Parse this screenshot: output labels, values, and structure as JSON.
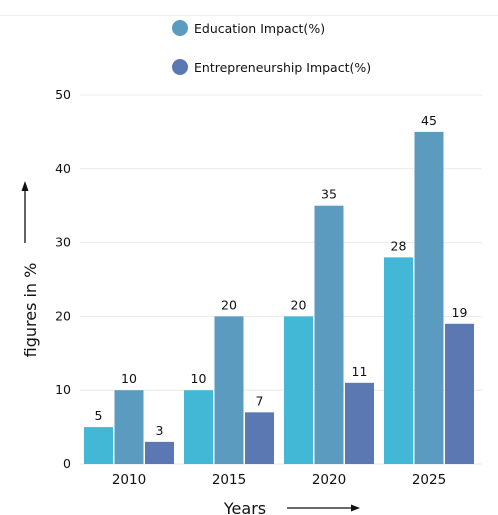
{
  "colors": {
    "series1": "#43b8d6",
    "series2": "#5b9bbf",
    "series3": "#5b78b2",
    "grid": "#e8e8e8"
  },
  "legend": [
    {
      "label": "Education Impact(%)",
      "color": "#5b9bbf"
    },
    {
      "label": "Entrepreneurship Impact(%)",
      "color": "#5b78b2"
    }
  ],
  "chart_data": {
    "type": "bar",
    "categories": [
      "2010",
      "2015",
      "2020",
      "2025"
    ],
    "series": [
      {
        "color": "#43b8d6",
        "values": [
          5,
          10,
          20,
          28
        ]
      },
      {
        "name": "Education Impact(%)",
        "color": "#5b9bbf",
        "values": [
          10,
          20,
          35,
          45
        ]
      },
      {
        "name": "Entrepreneurship Impact(%)",
        "color": "#5b78b2",
        "values": [
          3,
          7,
          11,
          19
        ]
      }
    ],
    "xlabel": "Years",
    "ylabel": "figures in %",
    "ylim": [
      0,
      50
    ],
    "yticks": [
      0,
      10,
      20,
      30,
      40,
      50
    ],
    "grid": true,
    "legend_position": "top"
  }
}
